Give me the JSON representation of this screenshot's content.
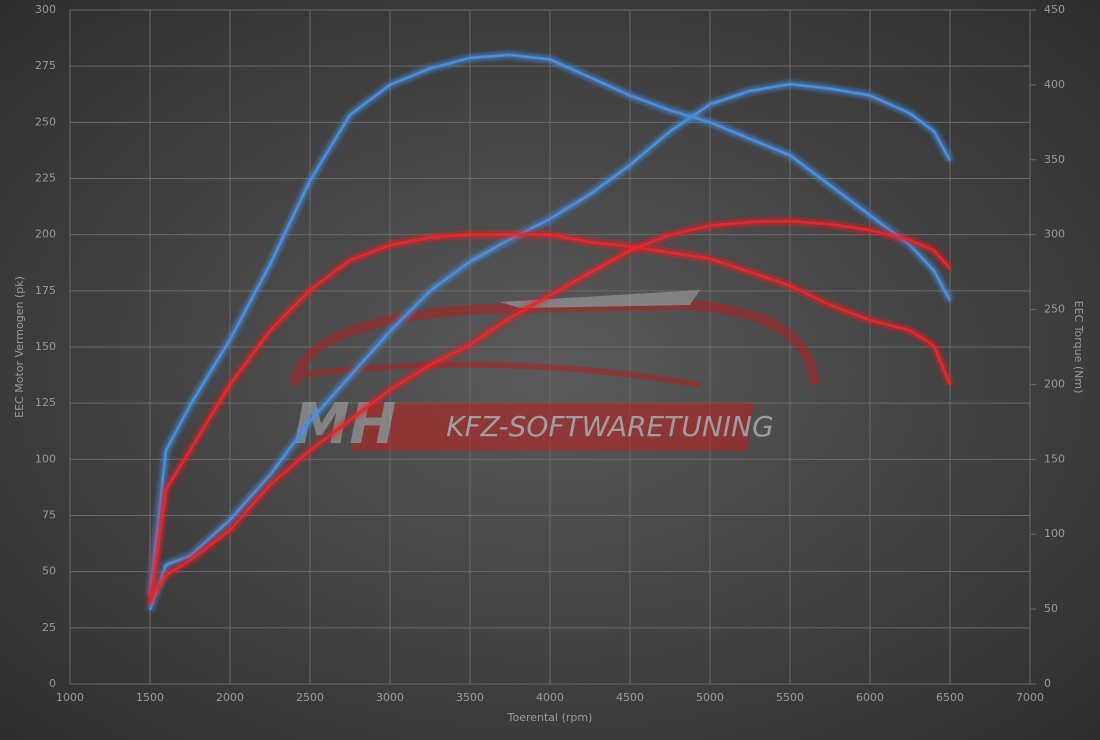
{
  "chart_data": {
    "type": "line",
    "xlabel": "Toerental (rpm)",
    "ylabel": "EEC Motor Vermogen (pk)",
    "y2label": "EEC Torque (Nm)",
    "watermark": {
      "logo": "MH",
      "text": "KFZ-SOFTWARETUNING"
    },
    "xlim": [
      1000,
      7000
    ],
    "xticks": [
      1000,
      1500,
      2000,
      2500,
      3000,
      3500,
      4000,
      4500,
      5000,
      5500,
      6000,
      6500,
      7000
    ],
    "ylim": [
      0,
      300
    ],
    "yticks": [
      0,
      25,
      50,
      75,
      100,
      125,
      150,
      175,
      200,
      225,
      250,
      275,
      300
    ],
    "y2lim": [
      0,
      450
    ],
    "y2ticks": [
      0,
      50,
      100,
      150,
      200,
      250,
      300,
      350,
      400,
      450
    ],
    "grid": true,
    "x": [
      1500,
      1600,
      1750,
      2000,
      2250,
      2500,
      2750,
      3000,
      3250,
      3500,
      3750,
      4000,
      4250,
      4500,
      4750,
      5000,
      5250,
      5500,
      5750,
      6000,
      6250,
      6400,
      6500
    ],
    "series": [
      {
        "color": "#4a8fe0",
        "axis": "y2",
        "values": [
          59,
          156,
          186,
          230,
          280,
          336,
          380,
          400,
          411,
          418,
          420,
          417,
          405,
          393,
          383,
          375,
          364,
          353,
          333,
          313,
          293,
          276,
          256
        ]
      },
      {
        "color": "#4a8fe0",
        "values": [
          33,
          53,
          57,
          73,
          93,
          117,
          137,
          157,
          175,
          188,
          198,
          207,
          218,
          231,
          246,
          258,
          264,
          267,
          265,
          262,
          254,
          246,
          233
        ]
      },
      {
        "color": "#e8262a",
        "axis": "y2",
        "values": [
          53,
          130,
          156,
          200,
          236,
          263,
          283,
          293,
          298,
          300,
          300,
          300,
          295,
          292,
          288,
          284,
          275,
          266,
          253,
          243,
          236,
          226,
          200
        ]
      },
      {
        "color": "#e8262a",
        "values": [
          38,
          48.5,
          55,
          68.5,
          88.6,
          104,
          117.5,
          131,
          142,
          151,
          163,
          173,
          183,
          193,
          200,
          204,
          205.6,
          206,
          204.7,
          202,
          197.6,
          193,
          185
        ]
      }
    ]
  }
}
